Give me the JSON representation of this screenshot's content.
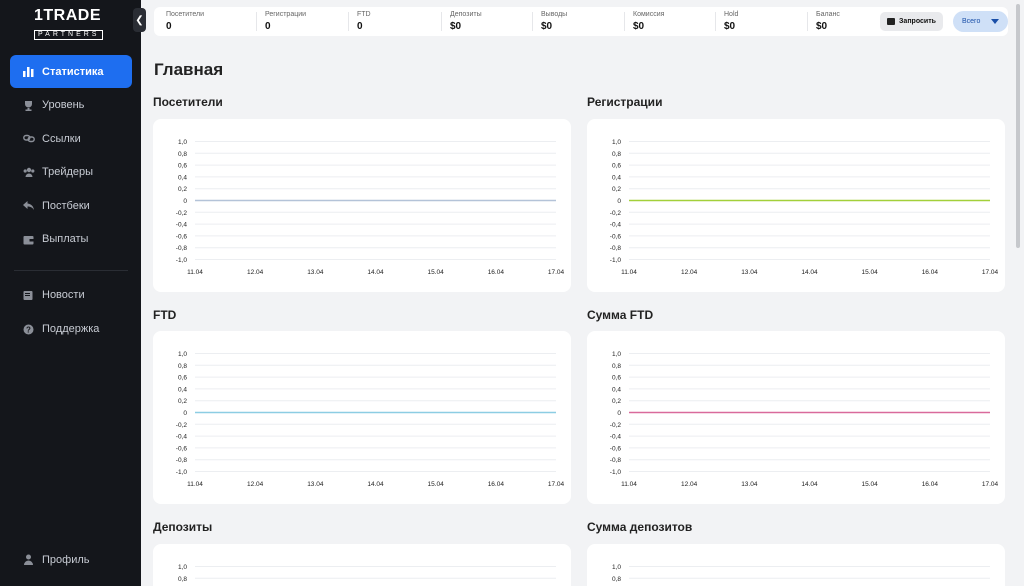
{
  "brand": {
    "main": "1TRADE",
    "sub": "PARTNERS"
  },
  "sidebar": {
    "items": [
      {
        "label": "Статистика",
        "icon": "bar-chart-icon",
        "active": true
      },
      {
        "label": "Уровень",
        "icon": "trophy-icon",
        "active": false
      },
      {
        "label": "Ссылки",
        "icon": "link-icon",
        "active": false
      },
      {
        "label": "Трейдеры",
        "icon": "users-icon",
        "active": false
      },
      {
        "label": "Постбеки",
        "icon": "reply-icon",
        "active": false
      },
      {
        "label": "Выплаты",
        "icon": "wallet-icon",
        "active": false
      }
    ],
    "secondary": [
      {
        "label": "Новости",
        "icon": "news-icon"
      },
      {
        "label": "Поддержка",
        "icon": "help-icon"
      }
    ],
    "profile": {
      "label": "Профиль",
      "icon": "user-icon"
    }
  },
  "topbar": {
    "stats": [
      {
        "label": "Посетители",
        "value": "0"
      },
      {
        "label": "Регистрации",
        "value": "0"
      },
      {
        "label": "FTD",
        "value": "0"
      },
      {
        "label": "Депозиты",
        "value": "$0"
      },
      {
        "label": "Выводы",
        "value": "$0"
      },
      {
        "label": "Комиссия",
        "value": "$0"
      },
      {
        "label": "Hold",
        "value": "$0"
      },
      {
        "label": "Баланс",
        "value": "$0"
      }
    ],
    "request_label": "Запросить",
    "period_label": "Всего"
  },
  "page": {
    "title": "Главная"
  },
  "chart_data": [
    {
      "type": "line",
      "title": "Посетители",
      "x": [
        "11.04",
        "12.04",
        "13.04",
        "14.04",
        "15.04",
        "16.04",
        "17.04"
      ],
      "series": [
        {
          "values": [
            0,
            0,
            0,
            0,
            0,
            0,
            0
          ],
          "color": "#b4c3d8"
        }
      ],
      "ylim": [
        -1.0,
        1.0
      ],
      "yticks": [
        "1,0",
        "0,8",
        "0,6",
        "0,4",
        "0,2",
        "0",
        "-0,2",
        "-0,4",
        "-0,6",
        "-0,8",
        "-1,0"
      ],
      "grid": true
    },
    {
      "type": "line",
      "title": "Регистрации",
      "x": [
        "11.04",
        "12.04",
        "13.04",
        "14.04",
        "15.04",
        "16.04",
        "17.04"
      ],
      "series": [
        {
          "values": [
            0,
            0,
            0,
            0,
            0,
            0,
            0
          ],
          "color": "#a3d03a"
        }
      ],
      "ylim": [
        -1.0,
        1.0
      ],
      "yticks": [
        "1,0",
        "0,8",
        "0,6",
        "0,4",
        "0,2",
        "0",
        "-0,2",
        "-0,4",
        "-0,6",
        "-0,8",
        "-1,0"
      ],
      "grid": true
    },
    {
      "type": "line",
      "title": "FTD",
      "x": [
        "11.04",
        "12.04",
        "13.04",
        "14.04",
        "15.04",
        "16.04",
        "17.04"
      ],
      "series": [
        {
          "values": [
            0,
            0,
            0,
            0,
            0,
            0,
            0
          ],
          "color": "#8ccde3"
        }
      ],
      "ylim": [
        -1.0,
        1.0
      ],
      "yticks": [
        "1,0",
        "0,8",
        "0,6",
        "0,4",
        "0,2",
        "0",
        "-0,2",
        "-0,4",
        "-0,6",
        "-0,8",
        "-1,0"
      ],
      "grid": true
    },
    {
      "type": "line",
      "title": "Сумма FTD",
      "x": [
        "11.04",
        "12.04",
        "13.04",
        "14.04",
        "15.04",
        "16.04",
        "17.04"
      ],
      "series": [
        {
          "values": [
            0,
            0,
            0,
            0,
            0,
            0,
            0
          ],
          "color": "#d96a9c"
        }
      ],
      "ylim": [
        -1.0,
        1.0
      ],
      "yticks": [
        "1,0",
        "0,8",
        "0,6",
        "0,4",
        "0,2",
        "0",
        "-0,2",
        "-0,4",
        "-0,6",
        "-0,8",
        "-1,0"
      ],
      "grid": true
    },
    {
      "type": "line",
      "title": "Депозиты",
      "x": [],
      "series": [],
      "ylim": [
        -1.0,
        1.0
      ],
      "yticks": [
        "1,0",
        "0,8"
      ],
      "grid": true
    },
    {
      "type": "line",
      "title": "Сумма депозитов",
      "x": [],
      "series": [],
      "ylim": [
        -1.0,
        1.0
      ],
      "yticks": [
        "1,0",
        "0,8"
      ],
      "grid": true
    }
  ]
}
